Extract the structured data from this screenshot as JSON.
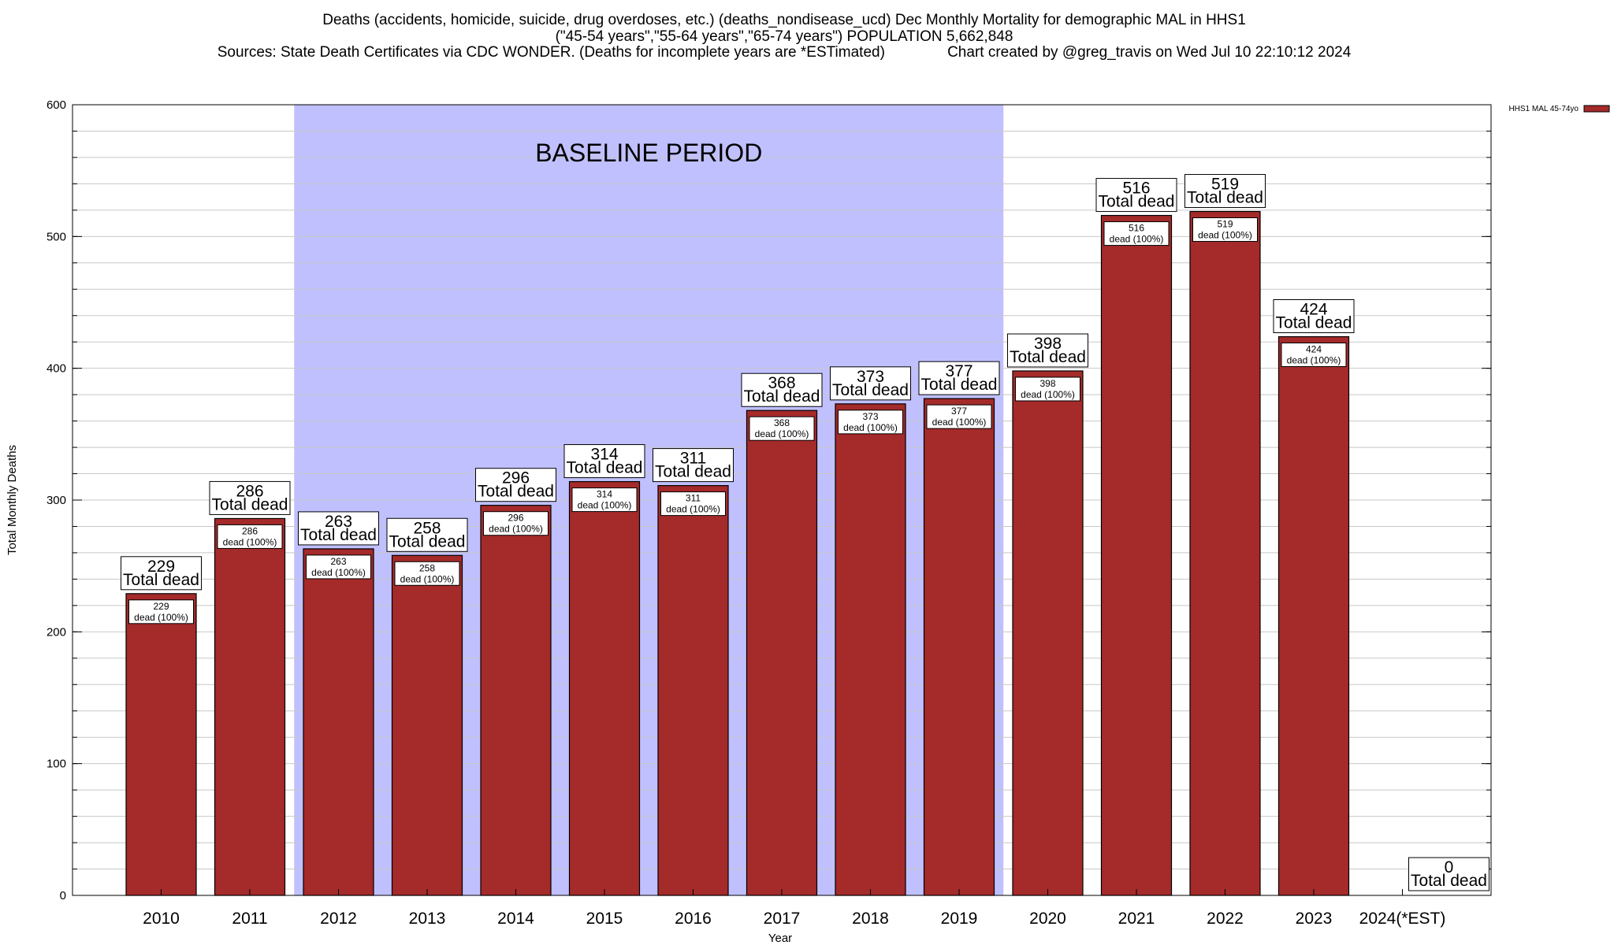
{
  "chart_data": {
    "type": "bar",
    "title_lines": [
      "Deaths (accidents, homicide, suicide, drug overdoses, etc.) (deaths_nondisease_ucd) Dec Monthly Mortality for demographic MAL in HHS1",
      "(\"45-54 years\",\"55-64 years\",\"65-74 years\") POPULATION 5,662,848",
      "Sources: State Death Certificates via CDC WONDER. (Deaths for incomplete years are *ESTimated)               Chart created by @greg_travis on Wed Jul 10 22:10:12 2024"
    ],
    "xlabel": "Year",
    "ylabel": "Total Monthly Deaths",
    "ylim": [
      0,
      600
    ],
    "yticks": [
      0,
      100,
      200,
      300,
      400,
      500,
      600
    ],
    "categories": [
      "2010",
      "2011",
      "2012",
      "2013",
      "2014",
      "2015",
      "2016",
      "2017",
      "2018",
      "2019",
      "2020",
      "2021",
      "2022",
      "2023",
      "2024(*EST)"
    ],
    "series": [
      {
        "name": "HHS1 MAL 45-74yo",
        "color": "#a52a2a",
        "values": [
          229,
          286,
          263,
          258,
          296,
          314,
          311,
          368,
          373,
          377,
          398,
          516,
          519,
          424,
          0
        ]
      }
    ],
    "total_label_suffix": "Total dead",
    "bar_label_suffix": "dead (100%)",
    "baseline_period": {
      "label": "BASELINE PERIOD",
      "start": "2012",
      "end": "2019",
      "color": "#c0c0ff"
    },
    "legend_position": "top-right",
    "grid": true
  }
}
